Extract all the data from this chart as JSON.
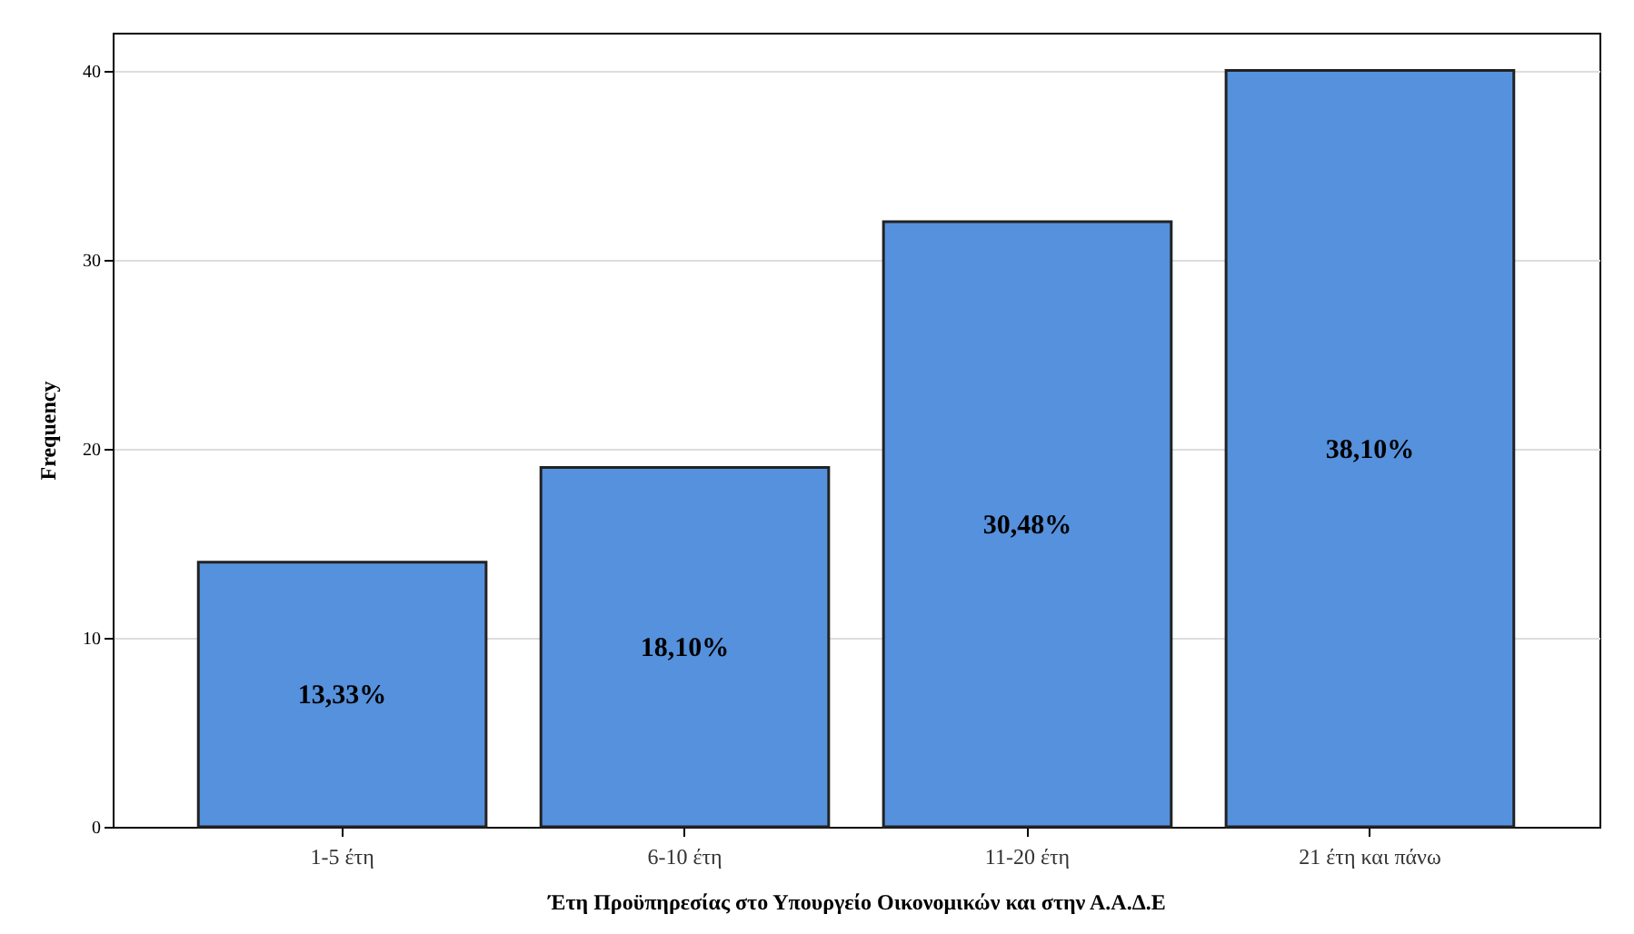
{
  "chart_data": {
    "type": "bar",
    "xlabel": "Έτη Προϋπηρεσίας στο Υπουργείο Οικονομικών και στην Α.Α.Δ.Ε",
    "ylabel": "Frequency",
    "categories": [
      "1-5 έτη",
      "6-10 έτη",
      "11-20 έτη",
      "21 έτη και πάνω"
    ],
    "values": [
      14,
      19,
      32,
      40
    ],
    "color": "#5591dd",
    "annotations": [
      "13,33%",
      "18,10%",
      "30,48%",
      "38,10%"
    ],
    "ylim": [
      0,
      42
    ],
    "yticks": [
      0,
      10,
      20,
      30,
      40
    ],
    "grid": "y"
  }
}
